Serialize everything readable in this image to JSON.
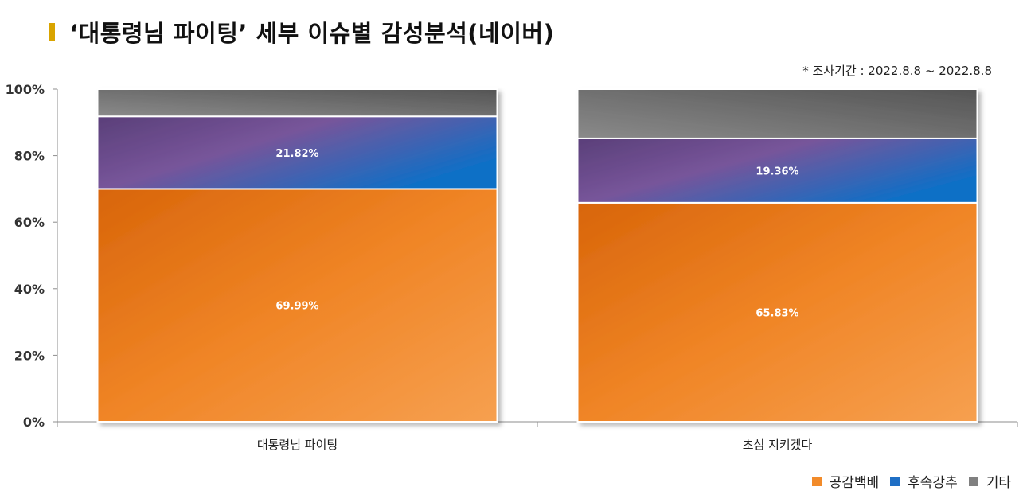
{
  "title": "‘대통령님 파이팅’ 세부 이슈별 감성분석(네이버)",
  "note": "* 조사기간 : 2022.8.8 ~ 2022.8.8",
  "colors": {
    "title_marker": "#d9a400",
    "series": [
      "#f28b2a",
      "#1f6fc5",
      "#808080"
    ]
  },
  "chart_data": {
    "type": "bar",
    "stacked": true,
    "categories": [
      "대통령님 파이팅",
      "초심 지키겠다"
    ],
    "series": [
      {
        "name": "공감백배",
        "values": [
          69.99,
          65.83
        ]
      },
      {
        "name": "후속강추",
        "values": [
          21.82,
          19.36
        ]
      },
      {
        "name": "기타",
        "values": [
          8.19,
          14.81
        ]
      }
    ],
    "data_labels": [
      [
        "69.99%",
        "21.82%",
        ""
      ],
      [
        "65.83%",
        "19.36%",
        ""
      ]
    ],
    "yticks": [
      "0%",
      "20%",
      "40%",
      "60%",
      "80%",
      "100%"
    ],
    "ylim": [
      0,
      100
    ],
    "legend_position": "bottom-right",
    "grid": false
  }
}
